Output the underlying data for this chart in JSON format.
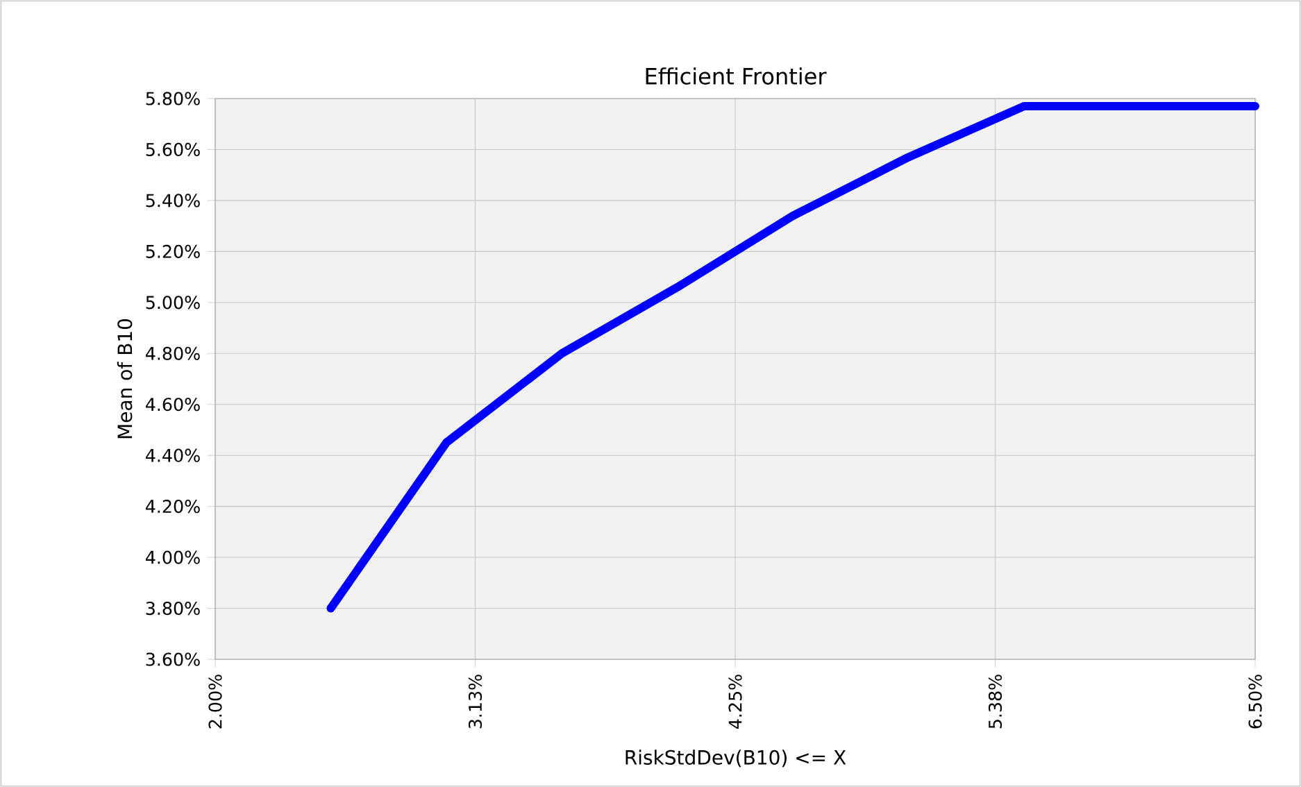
{
  "chart_data": {
    "type": "line",
    "title": "Efficient Frontier",
    "xlabel": "RiskStdDev(B10) <= X",
    "ylabel": "Mean of B10",
    "x": [
      2.5,
      3.0,
      3.5,
      4.0,
      4.5,
      5.0,
      5.5,
      6.0,
      6.5
    ],
    "series": [
      {
        "color": "#0000ff",
        "values": [
          3.8,
          4.45,
          4.8,
          5.06,
          5.34,
          5.57,
          5.77,
          5.77,
          5.77
        ]
      }
    ],
    "xlim": [
      2.0,
      6.5
    ],
    "xticks": [
      {
        "value": 2.0,
        "label": "2.00%"
      },
      {
        "value": 3.125,
        "label": "3.13%"
      },
      {
        "value": 4.25,
        "label": "4.25%"
      },
      {
        "value": 5.375,
        "label": "5.38%"
      },
      {
        "value": 6.5,
        "label": "6.50%"
      }
    ],
    "ylim": [
      3.6,
      5.8
    ],
    "yticks": [
      {
        "value": 3.6,
        "label": "3.60%"
      },
      {
        "value": 3.8,
        "label": "3.80%"
      },
      {
        "value": 4.0,
        "label": "4.00%"
      },
      {
        "value": 4.2,
        "label": "4.20%"
      },
      {
        "value": 4.4,
        "label": "4.40%"
      },
      {
        "value": 4.6,
        "label": "4.60%"
      },
      {
        "value": 4.8,
        "label": "4.80%"
      },
      {
        "value": 5.0,
        "label": "5.00%"
      },
      {
        "value": 5.2,
        "label": "5.20%"
      },
      {
        "value": 5.4,
        "label": "5.40%"
      },
      {
        "value": 5.6,
        "label": "5.60%"
      },
      {
        "value": 5.8,
        "label": "5.80%"
      }
    ],
    "grid": true,
    "marker": "none",
    "line_style": "solid"
  }
}
